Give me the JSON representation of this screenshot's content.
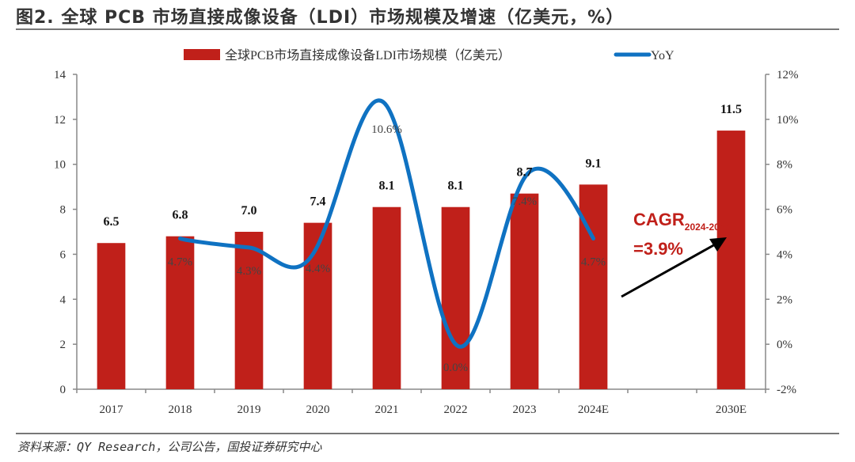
{
  "title": "图2. 全球 PCB 市场直接成像设备（LDI）市场规模及增速（亿美元，%）",
  "source": "资料来源：QY Research，公司公告，国投证券研究中心",
  "colors": {
    "bar": "#c0201a",
    "line": "#0f72c2",
    "axis": "#888888",
    "annotation": "#c0201a"
  },
  "chart_data": {
    "type": "bar",
    "title": "全球 PCB 市场直接成像设备（LDI）市场规模及增速（亿美元，%）",
    "categories": [
      "2017",
      "2018",
      "2019",
      "2020",
      "2021",
      "2022",
      "2023",
      "2024E",
      "",
      "2030E"
    ],
    "series": [
      {
        "name": "全球PCB市场直接成像设备LDI市场规模（亿美元）",
        "type": "bar",
        "axis": "left",
        "values": [
          6.5,
          6.8,
          7.0,
          7.4,
          8.1,
          8.1,
          8.7,
          9.1,
          null,
          11.5
        ],
        "labels": [
          "6.5",
          "6.8",
          "7.0",
          "7.4",
          "8.1",
          "8.1",
          "8.7",
          "9.1",
          "",
          "11.5"
        ]
      },
      {
        "name": "YoY",
        "type": "line",
        "axis": "right",
        "smooth": true,
        "values": [
          null,
          4.7,
          4.3,
          4.4,
          10.6,
          0.0,
          7.4,
          4.7,
          null,
          null
        ],
        "labels": [
          "",
          "4.7%",
          "4.3%",
          "4.4%",
          "10.6%",
          "0.0%",
          "7.4%",
          "4.7%",
          "",
          ""
        ]
      }
    ],
    "left_axis": {
      "min": 0,
      "max": 14,
      "step": 2,
      "ticks": [
        "0",
        "2",
        "4",
        "6",
        "8",
        "10",
        "12",
        "14"
      ]
    },
    "right_axis": {
      "min": -2,
      "max": 12,
      "step": 2,
      "ticks": [
        "-2%",
        "0%",
        "2%",
        "4%",
        "6%",
        "8%",
        "10%",
        "12%"
      ]
    },
    "legend": {
      "position": "top-center",
      "entries": [
        "全球PCB市场直接成像设备LDI市场规模（亿美元）",
        "YoY"
      ]
    },
    "annotation": {
      "text": "CAGR",
      "subscript": "2024-2030",
      "value": "=3.9%"
    },
    "grid": false
  }
}
